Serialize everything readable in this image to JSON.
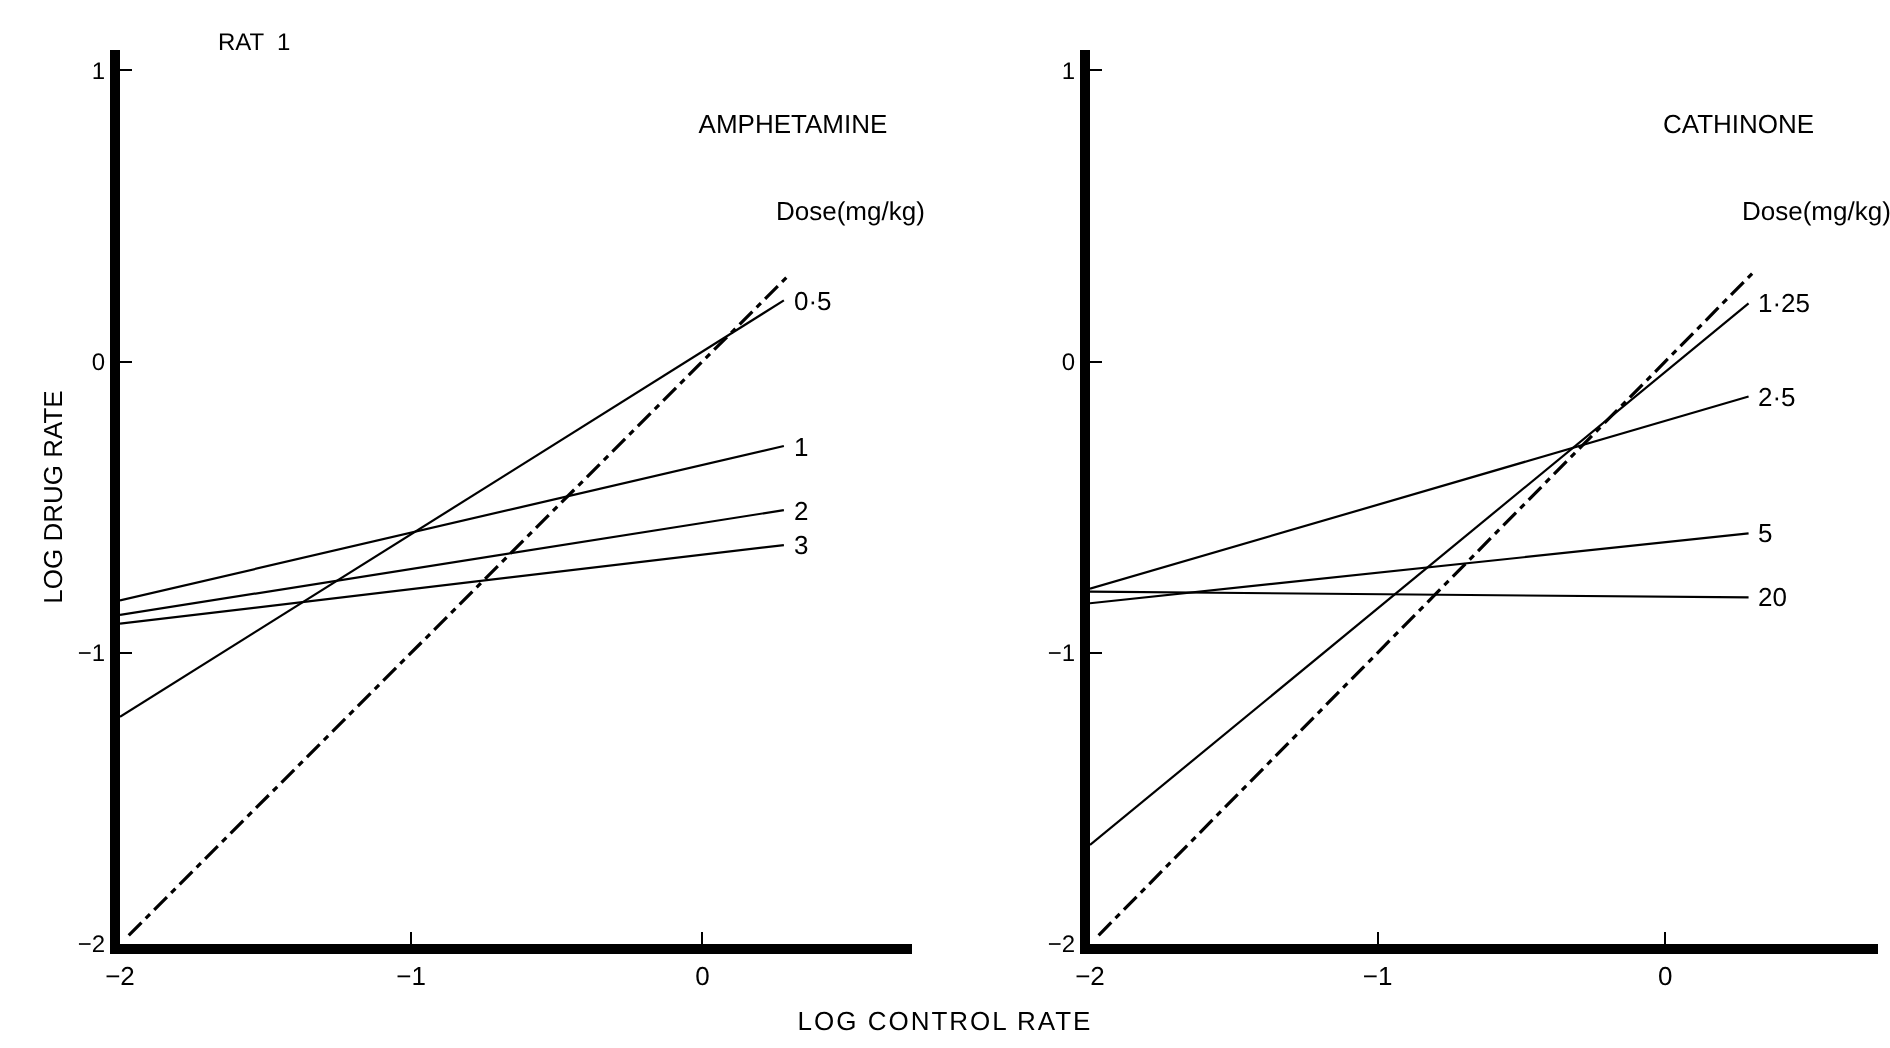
{
  "chart_data": [
    {
      "type": "line",
      "title": "AMPHETAMINE",
      "xlabel": "LOG CONTROL RATE",
      "ylabel": "LOG DRUG RATE",
      "annotations": [
        "RAT  1",
        "Dose(mg/kg)"
      ],
      "xlim": [
        -2,
        0.72
      ],
      "ylim": [
        -2,
        1.07
      ],
      "xticks": [
        -2,
        -1,
        0
      ],
      "yticks": [
        -2,
        -1,
        0,
        1
      ],
      "grid": false,
      "legend": false,
      "marker": "none",
      "series": [
        {
          "name": "0·5",
          "color": "#000000",
          "x": [
            -2,
            0.28
          ],
          "values": [
            -1.22,
            0.21
          ]
        },
        {
          "name": "1",
          "color": "#000000",
          "x": [
            -2,
            0.28
          ],
          "values": [
            -0.82,
            -0.29
          ]
        },
        {
          "name": "2",
          "color": "#000000",
          "x": [
            -2,
            0.28
          ],
          "values": [
            -0.87,
            -0.51
          ]
        },
        {
          "name": "3",
          "color": "#000000",
          "x": [
            -2,
            0.28
          ],
          "values": [
            -0.9,
            -0.63
          ]
        },
        {
          "color": "#000000",
          "line_style": "dashed",
          "x": [
            -1.97,
            0.3
          ],
          "values": [
            -1.97,
            0.3
          ]
        }
      ]
    },
    {
      "type": "line",
      "title": "CATHINONE",
      "annotations": [
        "Dose(mg/kg)"
      ],
      "xlim": [
        -2,
        0.74
      ],
      "ylim": [
        -2,
        1.07
      ],
      "xticks": [
        -2,
        -1,
        0
      ],
      "yticks": [
        -2,
        -1,
        0,
        1
      ],
      "grid": false,
      "legend": false,
      "marker": "none",
      "series": [
        {
          "name": "1·25",
          "color": "#000000",
          "x": [
            -2,
            0.29
          ],
          "values": [
            -1.66,
            0.2
          ]
        },
        {
          "name": "2·5",
          "color": "#000000",
          "x": [
            -2,
            0.29
          ],
          "values": [
            -0.78,
            -0.12
          ]
        },
        {
          "name": "5",
          "color": "#000000",
          "x": [
            -2,
            0.29
          ],
          "values": [
            -0.83,
            -0.59
          ]
        },
        {
          "name": "20",
          "color": "#000000",
          "x": [
            -2,
            0.29
          ],
          "values": [
            -0.79,
            -0.81
          ]
        },
        {
          "color": "#000000",
          "line_style": "dashed",
          "x": [
            -1.97,
            0.31
          ],
          "values": [
            -1.97,
            0.31
          ]
        }
      ]
    }
  ]
}
